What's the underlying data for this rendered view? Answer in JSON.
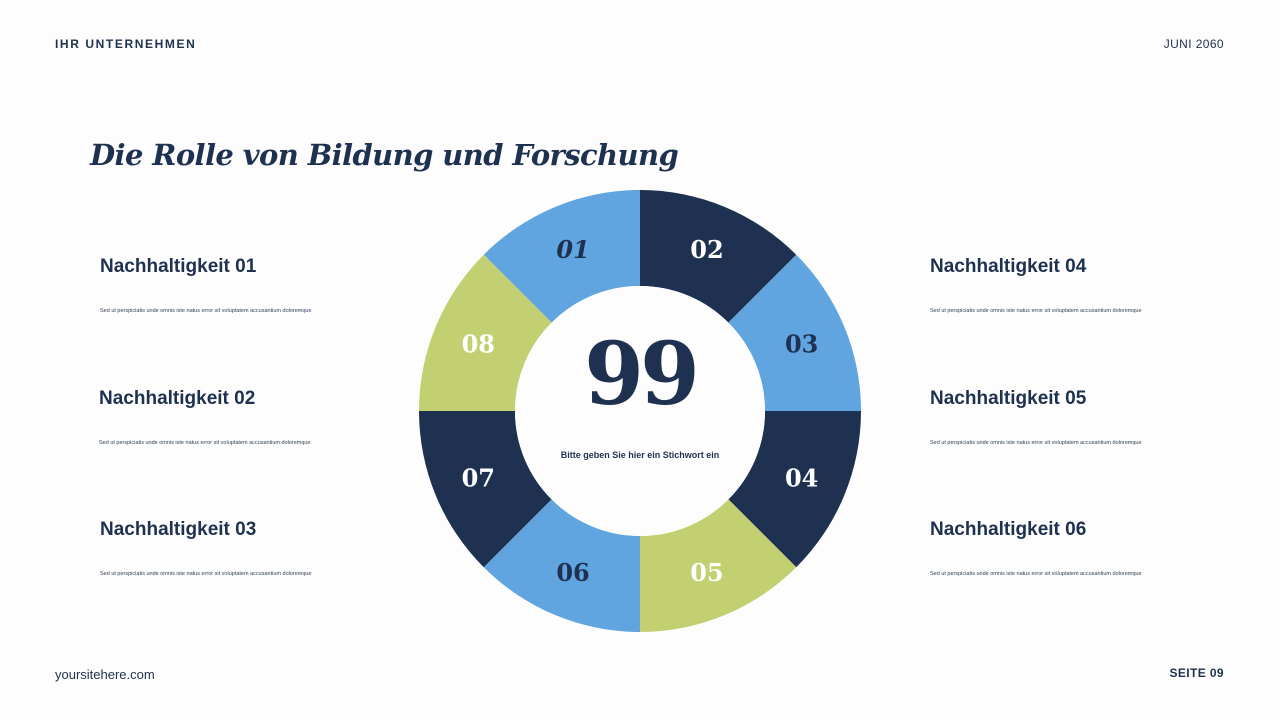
{
  "header": {
    "company": "IHR UNTERNEHMEN",
    "date": "JUNI 2060"
  },
  "title": "Die Rolle von Bildung und Forschung",
  "items": [
    {
      "heading": "Nachhaltigkeit 01",
      "text": "Sed ut perspiciatis unde omnis iste natus error sit voluptatem accusantium doloremque"
    },
    {
      "heading": "Nachhaltigkeit 02",
      "text": "Sed ut perspiciatis unde omnis iste natus error sit voluptatem accusantium doloremque"
    },
    {
      "heading": "Nachhaltigkeit 03",
      "text": "Sed ut perspiciatis unde omnis iste natus error sit voluptatem accusantium doloremque"
    },
    {
      "heading": "Nachhaltigkeit 04",
      "text": "Sed ut perspiciatis unde omnis iste natus error sit voluptatem accusantium doloremque"
    },
    {
      "heading": "Nachhaltigkeit 05",
      "text": "Sed ut perspiciatis unde omnis iste natus error sit voluptatem accusantium doloremque"
    },
    {
      "heading": "Nachhaltigkeit 06",
      "text": "Sed ut perspiciatis unde omnis iste natus error sit voluptatem accusantium doloremque"
    }
  ],
  "ring": {
    "center_number": "99",
    "center_text": "Bitte geben Sie hier ein Stichwort ein",
    "segments": [
      {
        "label": "01",
        "color": "#60a5e0"
      },
      {
        "label": "02",
        "color": "#1f3150"
      },
      {
        "label": "03",
        "color": "#60a5e0"
      },
      {
        "label": "04",
        "color": "#1f3150"
      },
      {
        "label": "05",
        "color": "#c3d072"
      },
      {
        "label": "06",
        "color": "#60a5e0"
      },
      {
        "label": "07",
        "color": "#1f3150"
      },
      {
        "label": "08",
        "color": "#c3d072"
      }
    ]
  },
  "footer": {
    "website": "yoursitehere.com",
    "page": "SEITE 09"
  },
  "colors": {
    "navy": "#1f3150",
    "blue": "#60a5e0",
    "green": "#c3d072",
    "background": "#fdfdfd"
  }
}
